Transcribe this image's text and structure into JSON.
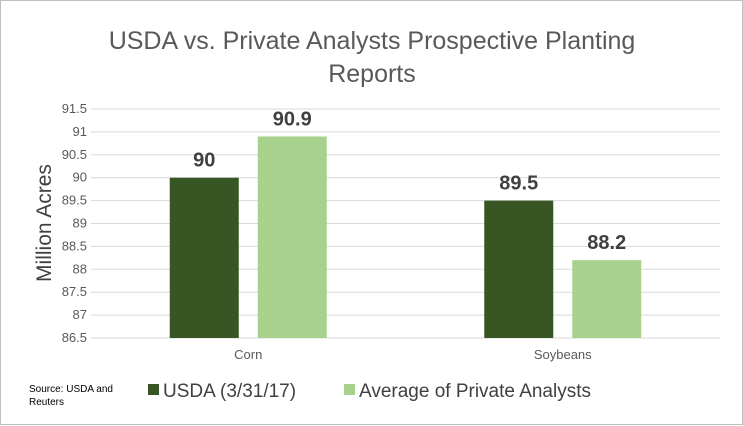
{
  "chart_data": {
    "type": "bar",
    "title_lines": [
      "USDA vs. Private Analysts Prospective Planting",
      "Reports"
    ],
    "ylabel": "Million Acres",
    "xlabel": "",
    "categories": [
      "Corn",
      "Soybeans"
    ],
    "series": [
      {
        "name": "USDA (3/31/17)",
        "color": "#375623",
        "values": [
          90,
          89.5
        ],
        "labels": [
          "90",
          "89.5"
        ]
      },
      {
        "name": "Average of Private Analysts",
        "color": "#a9d18e",
        "values": [
          90.9,
          88.2
        ],
        "labels": [
          "90.9",
          "88.2"
        ]
      }
    ],
    "ylim": [
      86.5,
      91.5
    ],
    "yticks": [
      "86.5",
      "87",
      "87.5",
      "88",
      "88.5",
      "89",
      "89.5",
      "90",
      "90.5",
      "91",
      "91.5"
    ],
    "grid": true,
    "legend_position": "bottom",
    "source_lines": [
      "Source: USDA and",
      "Reuters"
    ]
  }
}
